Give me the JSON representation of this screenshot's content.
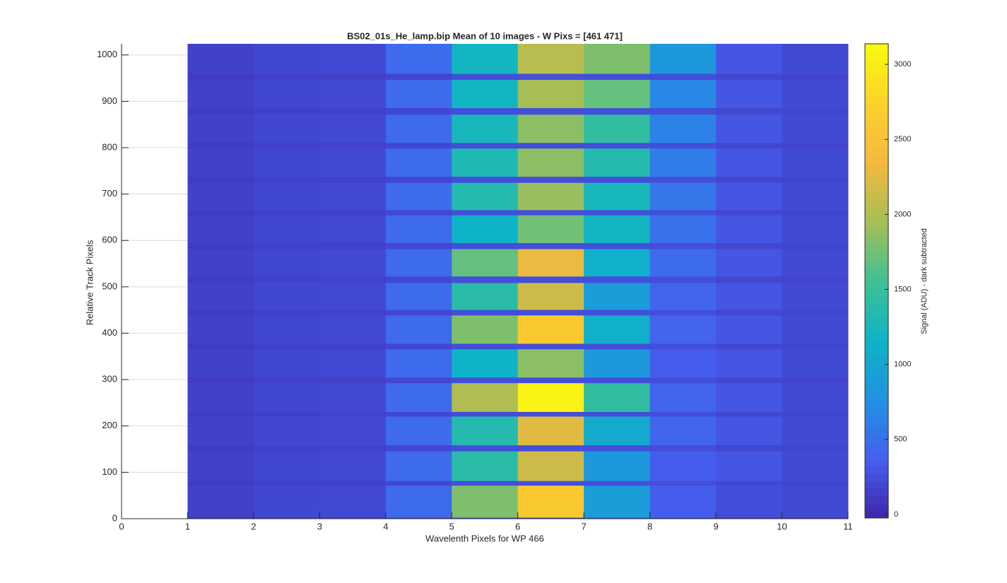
{
  "chart_data": {
    "type": "heatmap",
    "title": "BS02_01s_He_lamp.bip  Mean of 10 images - W Pixs = [461  471]",
    "xlabel": "Wavelenth Pixels for WP 466",
    "ylabel": "Relative Track Pixels",
    "colorbar_label": "Signal (ADU) - dark subtracted",
    "xlim": [
      0,
      11
    ],
    "xticks": [
      0,
      1,
      2,
      3,
      4,
      5,
      6,
      7,
      8,
      9,
      10,
      11
    ],
    "ylim": [
      0,
      1024
    ],
    "yticks": [
      0,
      100,
      200,
      300,
      400,
      500,
      600,
      700,
      800,
      900,
      1000
    ],
    "clim": [
      -24,
      3137
    ],
    "cticks": [
      0,
      500,
      1000,
      1500,
      2000,
      2500,
      3000
    ],
    "grid": true,
    "colorscale": [
      "#3e26a8",
      "#4560f0",
      "#2191e3",
      "#0db4c6",
      "#3fc194",
      "#a6be55",
      "#f4b93e",
      "#fdd22a",
      "#f9fb0e"
    ],
    "x_edges": [
      1,
      2,
      3,
      4,
      5,
      6,
      7,
      8,
      9,
      10,
      11
    ],
    "y_edges": [
      0,
      3,
      72,
      82,
      146,
      159,
      221,
      231,
      293,
      305,
      366,
      378,
      439,
      451,
      509,
      523,
      582,
      595,
      655,
      666,
      725,
      738,
      799,
      811,
      872,
      886,
      947,
      960,
      1024
    ],
    "z": [
      [
        120,
        150,
        160,
        200,
        250,
        250,
        250,
        250,
        200,
        180
      ],
      [
        160,
        200,
        210,
        450,
        1800,
        2600,
        900,
        350,
        250,
        220
      ],
      [
        120,
        150,
        160,
        200,
        250,
        250,
        250,
        250,
        200,
        180
      ],
      [
        160,
        200,
        210,
        450,
        1400,
        2150,
        850,
        350,
        300,
        220
      ],
      [
        120,
        150,
        160,
        200,
        250,
        250,
        250,
        250,
        200,
        180
      ],
      [
        160,
        200,
        210,
        450,
        1350,
        2250,
        1050,
        400,
        300,
        220
      ],
      [
        120,
        150,
        160,
        200,
        250,
        250,
        250,
        250,
        200,
        180
      ],
      [
        160,
        200,
        210,
        450,
        2000,
        3050,
        1450,
        400,
        300,
        220
      ],
      [
        120,
        150,
        160,
        200,
        250,
        250,
        250,
        250,
        200,
        180
      ],
      [
        160,
        200,
        210,
        450,
        1150,
        1850,
        850,
        350,
        300,
        220
      ],
      [
        120,
        150,
        160,
        200,
        250,
        250,
        250,
        250,
        200,
        180
      ],
      [
        160,
        200,
        210,
        450,
        1800,
        2600,
        1100,
        400,
        300,
        220
      ],
      [
        120,
        150,
        160,
        200,
        250,
        250,
        250,
        250,
        200,
        180
      ],
      [
        160,
        200,
        210,
        450,
        1400,
        2150,
        900,
        400,
        300,
        220
      ],
      [
        120,
        150,
        160,
        200,
        250,
        250,
        250,
        250,
        200,
        180
      ],
      [
        160,
        200,
        210,
        450,
        1700,
        2300,
        1100,
        450,
        300,
        220
      ],
      [
        120,
        150,
        160,
        200,
        250,
        250,
        250,
        250,
        200,
        180
      ],
      [
        160,
        200,
        210,
        450,
        1150,
        1750,
        1200,
        500,
        300,
        220
      ],
      [
        120,
        150,
        160,
        200,
        250,
        250,
        250,
        250,
        200,
        180
      ],
      [
        160,
        200,
        210,
        450,
        1350,
        1900,
        1250,
        550,
        300,
        220
      ],
      [
        120,
        150,
        160,
        200,
        250,
        250,
        250,
        250,
        200,
        180
      ],
      [
        160,
        200,
        210,
        450,
        1300,
        1850,
        1350,
        600,
        300,
        220
      ],
      [
        120,
        150,
        160,
        200,
        250,
        250,
        250,
        250,
        200,
        180
      ],
      [
        160,
        200,
        210,
        450,
        1250,
        1850,
        1450,
        650,
        300,
        220
      ],
      [
        120,
        150,
        160,
        200,
        250,
        250,
        250,
        250,
        200,
        180
      ],
      [
        160,
        200,
        210,
        450,
        1200,
        1950,
        1700,
        700,
        300,
        220
      ],
      [
        120,
        150,
        160,
        200,
        250,
        250,
        250,
        250,
        200,
        180
      ],
      [
        160,
        200,
        210,
        450,
        1200,
        2050,
        1800,
        850,
        300,
        220
      ]
    ]
  }
}
